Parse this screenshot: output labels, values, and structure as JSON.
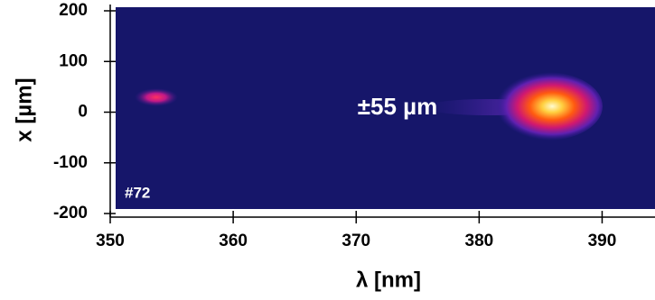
{
  "chart_data": {
    "type": "image",
    "x_label": "λ [nm]",
    "y_label": "x [µm]",
    "xlim": [
      350,
      394.3
    ],
    "xticks": [
      350,
      360,
      370,
      380,
      390
    ],
    "ylim": [
      -200,
      200
    ],
    "yticks": [
      -200,
      -100,
      0,
      100,
      200
    ],
    "annotations": [
      "±55 µm",
      "#72"
    ],
    "background": "#16166a"
  }
}
